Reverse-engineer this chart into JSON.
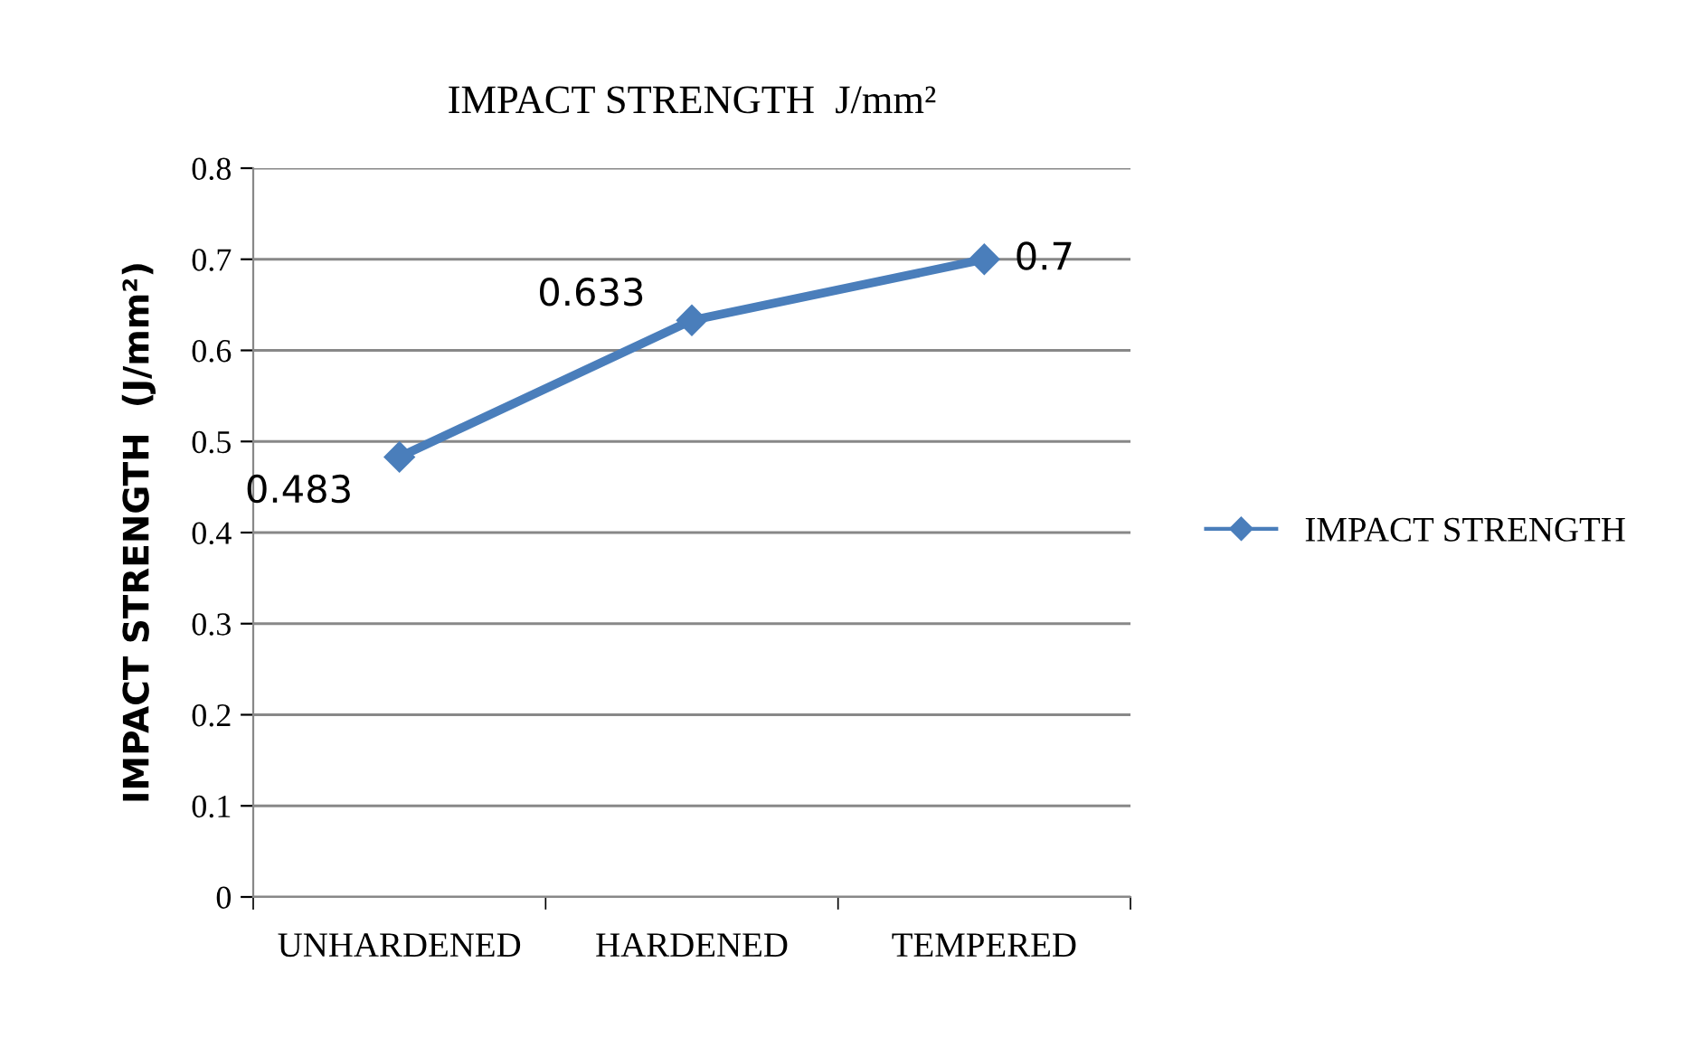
{
  "chart_data": {
    "type": "line",
    "title": "IMPACT STRENGTH  J/mm²",
    "ylabel": "IMPACT STRENGTH  (J/mm²)",
    "categories": [
      "UNHARDENED",
      "HARDENED",
      "TEMPERED"
    ],
    "series": [
      {
        "name": "IMPACT STRENGTH",
        "color": "#4a7ebb",
        "values": [
          0.483,
          0.633,
          0.7
        ]
      }
    ],
    "ylim": [
      0,
      0.8
    ],
    "yticks": [
      0,
      0.1,
      0.2,
      0.3,
      0.4,
      0.5,
      0.6,
      0.7,
      0.8
    ],
    "grid": "y",
    "legend": "right",
    "marker": "diamond",
    "line_style": "solid",
    "data_labels": true
  }
}
